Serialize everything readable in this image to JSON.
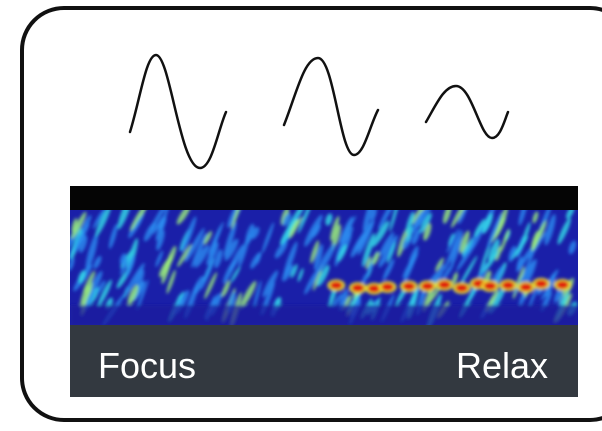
{
  "labels": {
    "left": "Focus",
    "right": "Relax"
  }
}
